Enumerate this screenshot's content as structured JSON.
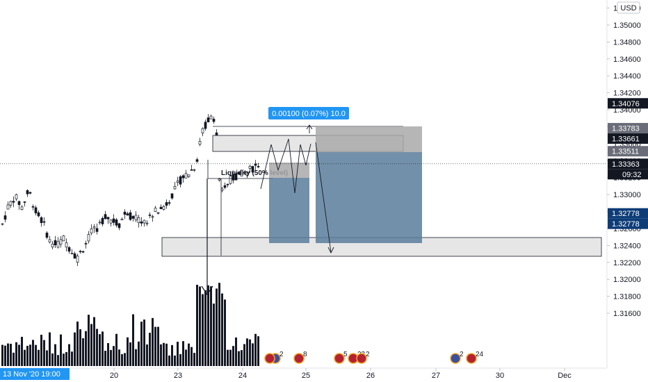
{
  "currency": "USD",
  "measure_label": "0.00100 (0.07%) 10.0",
  "liquidity_label": "Liquidity (50% level)",
  "countdown": "09:32",
  "crosshair_time": "13 Nov '20   19:00",
  "colors": {
    "candle": "#131722",
    "volume": "#131722",
    "zone_fill": "#e6e6e6",
    "zone_border": "#131722",
    "target_fill": "#5b7c9b",
    "stop_fill": "#a9a9a9",
    "measure_bg": "#2196f3",
    "tag_dark": "#131722",
    "tag_grey": "#6a6d78",
    "tag_navy": "#0d3c77"
  },
  "chart_data": {
    "type": "candlestick",
    "ylim": [
      1.3152,
      1.3538
    ],
    "y_ticks": [
      1.352,
      1.35,
      1.348,
      1.346,
      1.344,
      1.342,
      1.34,
      1.338,
      1.336,
      1.334,
      1.332,
      1.33,
      1.328,
      1.326,
      1.324,
      1.322,
      1.32,
      1.318,
      1.316
    ],
    "y_tick_labels": [
      "1.35200",
      "1.35000",
      "1.34800",
      "1.34600",
      "1.34400",
      "1.34200",
      "1.34000",
      "1.33800",
      "1.33600",
      "1.33400",
      "1.33200",
      "1.33000",
      "1.32800",
      "1.32600",
      "1.32400",
      "1.32200",
      "1.32000",
      "1.31800",
      "1.31600"
    ],
    "x_ticks": [
      "20",
      "23",
      "24",
      "25",
      "26",
      "27",
      "30",
      "Dec"
    ],
    "price_tags": [
      {
        "label": "1.34076",
        "value": 1.34076,
        "style": "dark"
      },
      {
        "label": "1.33783",
        "value": 1.33783,
        "style": "grey"
      },
      {
        "label": "1.33661",
        "value": 1.33661,
        "style": "dark"
      },
      {
        "label": "1.33511",
        "value": 1.33511,
        "style": "grey"
      },
      {
        "label": "1.33363",
        "value": 1.33363,
        "style": "dark"
      },
      {
        "label": "1.32778",
        "value": 1.32778,
        "style": "navy"
      },
      {
        "label": "1.32778",
        "value": 1.32778,
        "style": "navy2"
      }
    ],
    "last_price": 1.33363,
    "events": [
      {
        "label": "2",
        "flags": [
          "uk",
          "us"
        ]
      },
      {
        "label": "8",
        "flags": [
          "us"
        ]
      },
      {
        "label": "5",
        "flags": [
          "us"
        ]
      },
      {
        "label": "23",
        "flags": [
          "us"
        ]
      },
      {
        "label": "2",
        "flags": [
          "us"
        ]
      },
      {
        "label": "2",
        "flags": [
          "uk"
        ]
      },
      {
        "label": "24",
        "flags": [
          "us"
        ]
      }
    ]
  }
}
